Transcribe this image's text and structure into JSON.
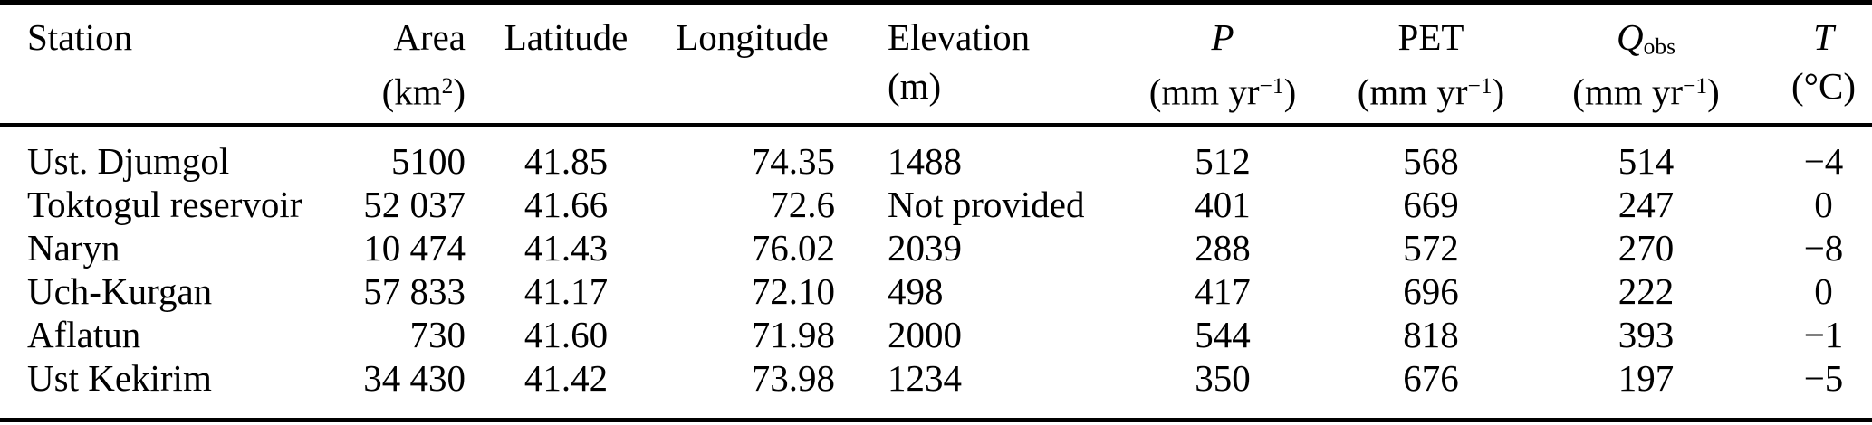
{
  "colors": {
    "background": "#ffffff",
    "text": "#000000",
    "rule": "#000000"
  },
  "table": {
    "columns": [
      {
        "id": "station",
        "label": "Station",
        "italic": false
      },
      {
        "id": "area",
        "label": "Area",
        "italic": false,
        "unit": {
          "pre": "(km",
          "sup": "2",
          "post": ")"
        }
      },
      {
        "id": "latitude",
        "label": "Latitude",
        "italic": false
      },
      {
        "id": "longitude",
        "label": "Longitude",
        "italic": false
      },
      {
        "id": "elevation",
        "label": "Elevation",
        "italic": false,
        "unit": {
          "pre": "(m)"
        }
      },
      {
        "id": "p",
        "label": "P",
        "italic": true,
        "unit": {
          "pre": "(mm yr",
          "sup": "−1",
          "post": ")"
        }
      },
      {
        "id": "pet",
        "label": "PET",
        "italic": false,
        "unit": {
          "pre": "(mm yr",
          "sup": "−1",
          "post": ")"
        }
      },
      {
        "id": "q-obs",
        "label": "Q",
        "sub": "obs",
        "italic": true,
        "unit": {
          "pre": "(mm yr",
          "sup": "−1",
          "post": ")"
        }
      },
      {
        "id": "temperature",
        "label": "T",
        "italic": true,
        "unit": {
          "pre": "(°C)"
        }
      }
    ],
    "rows": [
      [
        "Ust. Djumgol",
        "5100",
        "41.85",
        "74.35",
        "1488",
        "512",
        "568",
        "514",
        "−4"
      ],
      [
        "Toktogul reservoir",
        "52 037",
        "41.66",
        "72.6",
        "Not provided",
        "401",
        "669",
        "247",
        "0"
      ],
      [
        "Naryn",
        "10 474",
        "41.43",
        "76.02",
        "2039",
        "288",
        "572",
        "270",
        "−8"
      ],
      [
        "Uch-Kurgan",
        "57 833",
        "41.17",
        "72.10",
        "498",
        "417",
        "696",
        "222",
        "0"
      ],
      [
        "Aflatun",
        "730",
        "41.60",
        "71.98",
        "2000",
        "544",
        "818",
        "393",
        "−1"
      ],
      [
        "Ust Kekirim",
        "34 430",
        "41.42",
        "73.98",
        "1234",
        "350",
        "676",
        "197",
        "−5"
      ]
    ]
  }
}
